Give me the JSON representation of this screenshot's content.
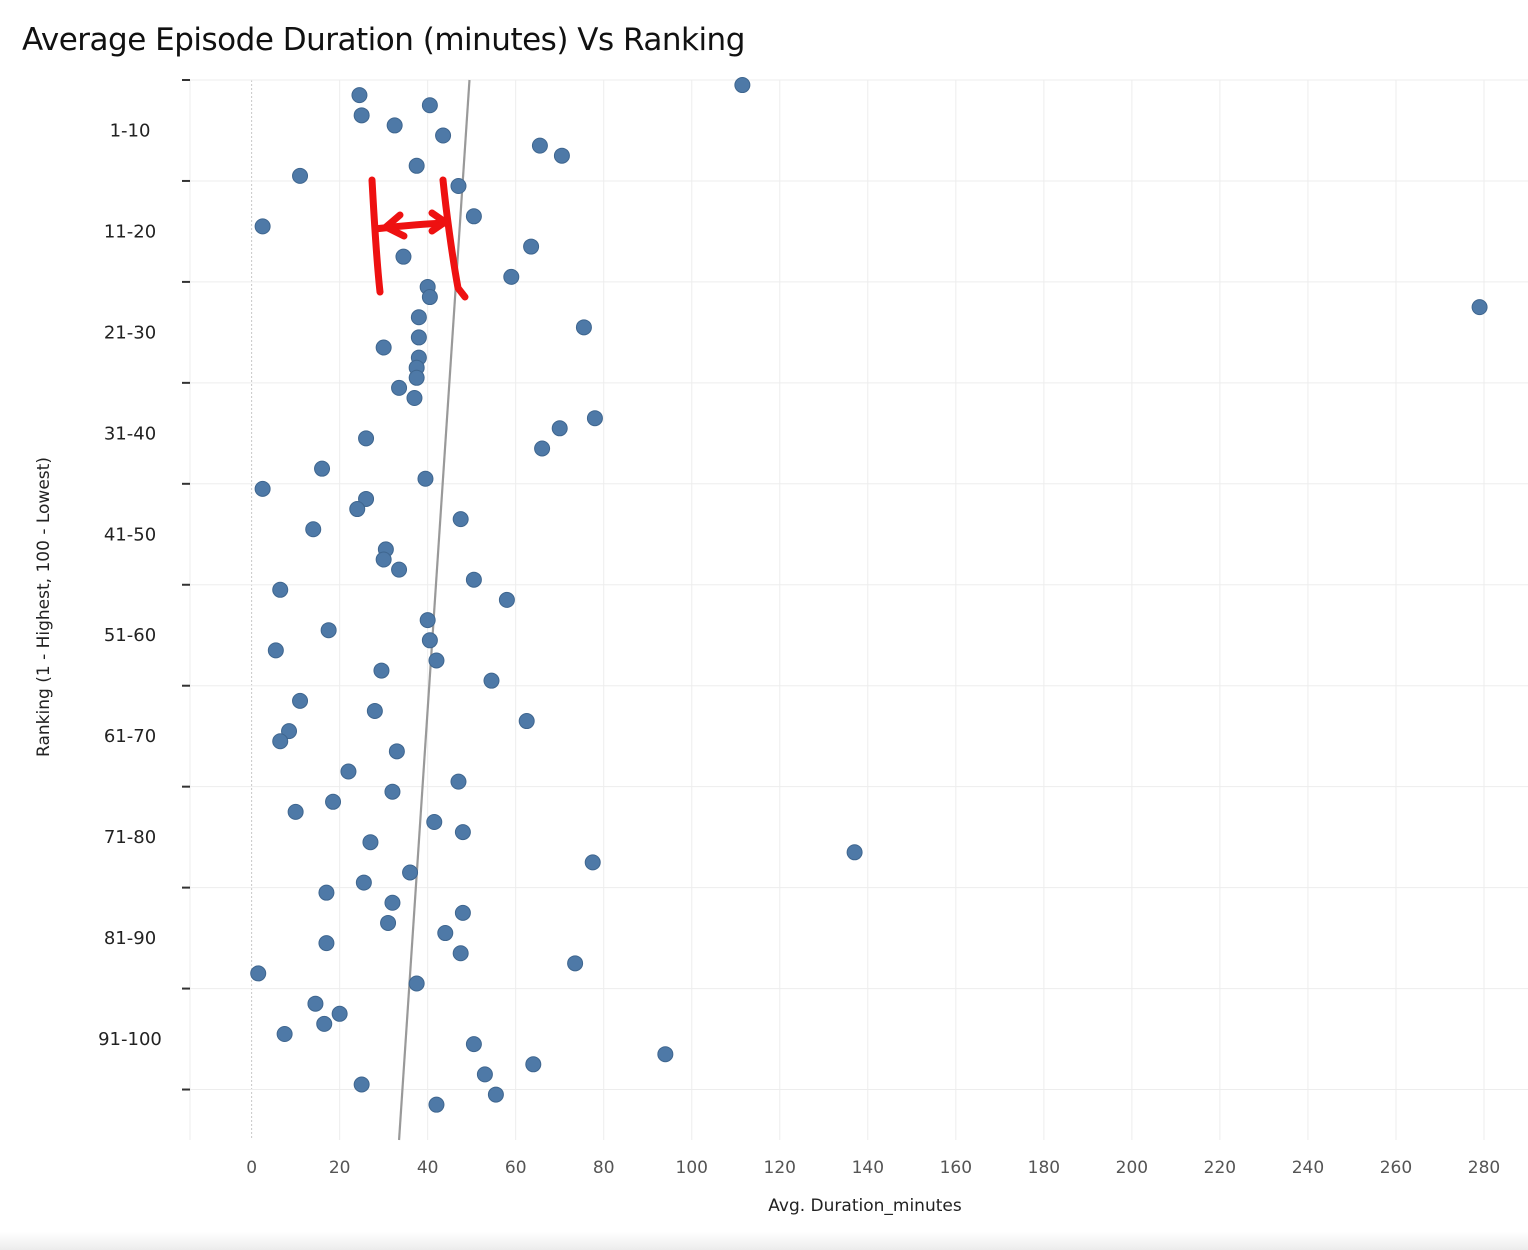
{
  "chart_data": {
    "type": "scatter",
    "title": "Average Episode Duration (minutes) Vs Ranking",
    "xlabel": "Avg. Duration_minutes",
    "ylabel": "Ranking (1 - Highest, 100 - Lowest)",
    "xlim": [
      -14,
      290
    ],
    "ylim": [
      0.5,
      105.5
    ],
    "x_ticks": [
      0,
      20,
      40,
      60,
      80,
      100,
      120,
      140,
      160,
      180,
      200,
      220,
      240,
      260,
      280
    ],
    "y_categories": [
      "1-10",
      "11-20",
      "21-30",
      "31-40",
      "41-50",
      "51-60",
      "61-70",
      "71-80",
      "81-90",
      "91-100"
    ],
    "grid": true,
    "marker_color": "#4e79a7",
    "trend_line": {
      "color": "#999999",
      "x_at_top": 49.5,
      "x_at_bottom": 33.5
    },
    "annotation": {
      "color": "#ee1111",
      "description": "hand-drawn red bracket with double arrow spanning roughly 28 to 45 minutes"
    },
    "points": [
      {
        "x": 111.5,
        "y": 1
      },
      {
        "x": 24.5,
        "y": 2
      },
      {
        "x": 40.5,
        "y": 3
      },
      {
        "x": 25.0,
        "y": 4
      },
      {
        "x": 32.5,
        "y": 5
      },
      {
        "x": 43.5,
        "y": 6
      },
      {
        "x": 65.5,
        "y": 7
      },
      {
        "x": 70.5,
        "y": 8
      },
      {
        "x": 37.5,
        "y": 9
      },
      {
        "x": 11.0,
        "y": 10
      },
      {
        "x": 47.0,
        "y": 11
      },
      {
        "x": 50.5,
        "y": 14
      },
      {
        "x": 2.5,
        "y": 15
      },
      {
        "x": 63.5,
        "y": 17
      },
      {
        "x": 34.5,
        "y": 18
      },
      {
        "x": 59.0,
        "y": 20
      },
      {
        "x": 40.0,
        "y": 21
      },
      {
        "x": 40.5,
        "y": 22
      },
      {
        "x": 279.0,
        "y": 23
      },
      {
        "x": 38.0,
        "y": 24
      },
      {
        "x": 75.5,
        "y": 25
      },
      {
        "x": 38.0,
        "y": 26
      },
      {
        "x": 30.0,
        "y": 27
      },
      {
        "x": 38.0,
        "y": 28
      },
      {
        "x": 37.5,
        "y": 29
      },
      {
        "x": 37.5,
        "y": 30
      },
      {
        "x": 33.5,
        "y": 31
      },
      {
        "x": 37.0,
        "y": 32
      },
      {
        "x": 78.0,
        "y": 34
      },
      {
        "x": 70.0,
        "y": 35
      },
      {
        "x": 26.0,
        "y": 36
      },
      {
        "x": 66.0,
        "y": 37
      },
      {
        "x": 16.0,
        "y": 39
      },
      {
        "x": 39.5,
        "y": 40
      },
      {
        "x": 2.5,
        "y": 41
      },
      {
        "x": 26.0,
        "y": 42
      },
      {
        "x": 24.0,
        "y": 43
      },
      {
        "x": 47.5,
        "y": 44
      },
      {
        "x": 14.0,
        "y": 45
      },
      {
        "x": 30.5,
        "y": 47
      },
      {
        "x": 30.0,
        "y": 48
      },
      {
        "x": 33.5,
        "y": 49
      },
      {
        "x": 50.5,
        "y": 50
      },
      {
        "x": 6.5,
        "y": 51
      },
      {
        "x": 58.0,
        "y": 52
      },
      {
        "x": 40.0,
        "y": 54
      },
      {
        "x": 17.5,
        "y": 55
      },
      {
        "x": 40.5,
        "y": 56
      },
      {
        "x": 5.5,
        "y": 57
      },
      {
        "x": 42.0,
        "y": 58
      },
      {
        "x": 29.5,
        "y": 59
      },
      {
        "x": 54.5,
        "y": 60
      },
      {
        "x": 11.0,
        "y": 62
      },
      {
        "x": 28.0,
        "y": 63
      },
      {
        "x": 62.5,
        "y": 64
      },
      {
        "x": 8.5,
        "y": 65
      },
      {
        "x": 6.5,
        "y": 66
      },
      {
        "x": 33.0,
        "y": 67
      },
      {
        "x": 22.0,
        "y": 69
      },
      {
        "x": 47.0,
        "y": 70
      },
      {
        "x": 32.0,
        "y": 71
      },
      {
        "x": 18.5,
        "y": 72
      },
      {
        "x": 10.0,
        "y": 73
      },
      {
        "x": 41.5,
        "y": 74
      },
      {
        "x": 48.0,
        "y": 75
      },
      {
        "x": 27.0,
        "y": 76
      },
      {
        "x": 137.0,
        "y": 77
      },
      {
        "x": 77.5,
        "y": 78
      },
      {
        "x": 36.0,
        "y": 79
      },
      {
        "x": 25.5,
        "y": 80
      },
      {
        "x": 17.0,
        "y": 81
      },
      {
        "x": 32.0,
        "y": 82
      },
      {
        "x": 48.0,
        "y": 83
      },
      {
        "x": 31.0,
        "y": 84
      },
      {
        "x": 44.0,
        "y": 85
      },
      {
        "x": 17.0,
        "y": 86
      },
      {
        "x": 47.5,
        "y": 87
      },
      {
        "x": 73.5,
        "y": 88
      },
      {
        "x": 1.5,
        "y": 89
      },
      {
        "x": 37.5,
        "y": 90
      },
      {
        "x": 14.5,
        "y": 92
      },
      {
        "x": 20.0,
        "y": 93
      },
      {
        "x": 16.5,
        "y": 94
      },
      {
        "x": 7.5,
        "y": 95
      },
      {
        "x": 50.5,
        "y": 96
      },
      {
        "x": 94.0,
        "y": 97
      },
      {
        "x": 64.0,
        "y": 98
      },
      {
        "x": 53.0,
        "y": 99
      },
      {
        "x": 25.0,
        "y": 100
      },
      {
        "x": 55.5,
        "y": 101
      },
      {
        "x": 42.0,
        "y": 102
      }
    ]
  }
}
